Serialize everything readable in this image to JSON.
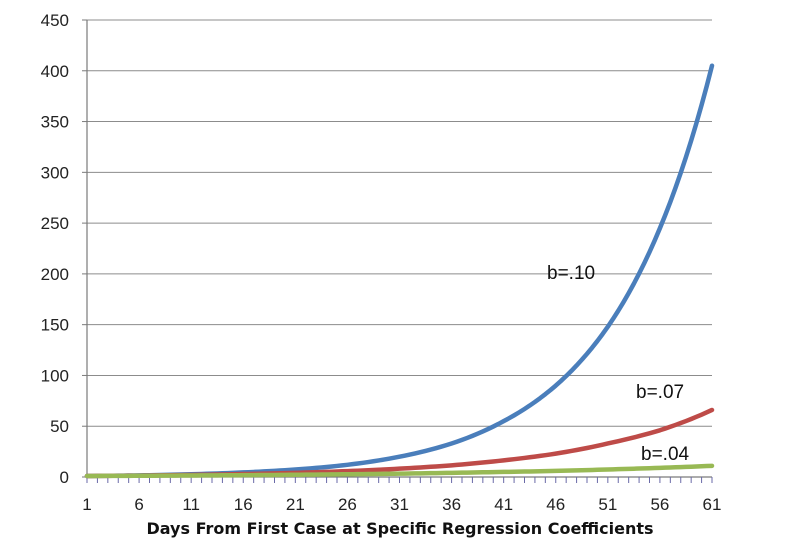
{
  "chart_data": {
    "type": "line",
    "title": "",
    "xlabel": "Days From First Case at Specific Regression Coefficients",
    "ylabel": "",
    "ylim": [
      0,
      450
    ],
    "xlim": [
      1,
      61
    ],
    "yticks": [
      0,
      50,
      100,
      150,
      200,
      250,
      300,
      350,
      400,
      450
    ],
    "xticks": [
      1,
      6,
      11,
      16,
      21,
      26,
      31,
      36,
      41,
      46,
      51,
      56,
      61
    ],
    "grid": "horizontal",
    "legend": "none",
    "series": [
      {
        "label": "b=.10",
        "color": "#4a7ebb",
        "x": [
          1,
          6,
          11,
          16,
          21,
          26,
          31,
          36,
          41,
          46,
          51,
          56,
          61
        ],
        "y": [
          1,
          1.6,
          2.7,
          4.5,
          7.4,
          12,
          20,
          33,
          55,
          90,
          148,
          245,
          405
        ]
      },
      {
        "label": "b=.07",
        "color": "#be4b48",
        "x": [
          1,
          6,
          11,
          16,
          21,
          26,
          31,
          36,
          41,
          46,
          51,
          56,
          61
        ],
        "y": [
          1,
          1.4,
          2,
          2.9,
          4.1,
          5.8,
          8.2,
          11.5,
          16.4,
          23,
          33,
          46,
          66
        ]
      },
      {
        "label": "b=.04",
        "color": "#98b954",
        "x": [
          1,
          6,
          11,
          16,
          21,
          26,
          31,
          36,
          41,
          46,
          51,
          56,
          61
        ],
        "y": [
          1,
          1.2,
          1.5,
          1.8,
          2.2,
          2.7,
          3.3,
          4.1,
          5,
          6,
          7.4,
          9,
          11
        ]
      }
    ],
    "annotations": [
      {
        "text": "b=.10",
        "series": 0
      },
      {
        "text": "b=.07",
        "series": 1
      },
      {
        "text": "b=.04",
        "series": 2
      }
    ]
  }
}
